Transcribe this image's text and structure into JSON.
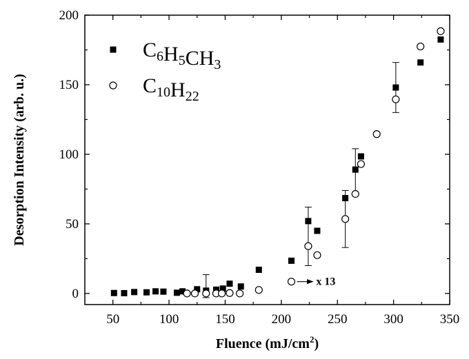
{
  "chart_data": {
    "type": "scatter",
    "xlabel": "Fluence (mJ/cm",
    "xlabel_sup": "2",
    "xlabel_end": ")",
    "ylabel": "Desorption Intensity (arb. u.)",
    "xlim": [
      25,
      350
    ],
    "ylim": [
      -8,
      200
    ],
    "xticks": [
      "50",
      "100",
      "150",
      "200",
      "250",
      "300",
      "350"
    ],
    "yticks": [
      "0",
      "50",
      "100",
      "150",
      "200"
    ],
    "xtick_values": [
      50,
      100,
      150,
      200,
      250,
      300,
      350
    ],
    "ytick_values": [
      0,
      50,
      100,
      150,
      200
    ],
    "series": [
      {
        "legend_parts": [
          {
            "t": "C",
            "sub": false
          },
          {
            "t": "6",
            "sub": true
          },
          {
            "t": "H",
            "sub": false
          },
          {
            "t": "5",
            "sub": true
          },
          {
            "t": "CH",
            "sub": false
          },
          {
            "t": "3",
            "sub": true
          }
        ],
        "marker": "filled-square",
        "x": [
          51,
          60,
          69,
          80,
          88,
          95,
          107,
          112,
          125,
          133,
          142,
          148,
          154,
          164,
          180,
          209,
          224,
          232,
          257,
          266,
          271,
          302,
          324,
          342
        ],
        "y": [
          0.3,
          0.2,
          1.0,
          0.8,
          1.5,
          1.3,
          0.5,
          1.5,
          3.0,
          2.0,
          2.7,
          3.5,
          7.0,
          5.0,
          17.0,
          23.5,
          52.0,
          45.0,
          68.5,
          89.0,
          98.5,
          148.0,
          166.0,
          182.5
        ]
      },
      {
        "legend_parts": [
          {
            "t": "C",
            "sub": false
          },
          {
            "t": "10",
            "sub": true
          },
          {
            "t": "H",
            "sub": false
          },
          {
            "t": "22",
            "sub": true
          }
        ],
        "marker": "open-circle",
        "x": [
          116,
          123,
          133,
          142,
          147,
          154,
          163,
          180,
          209,
          224,
          232,
          257,
          266,
          271,
          285,
          302,
          324,
          342
        ],
        "y": [
          0.0,
          0.0,
          0.0,
          0.0,
          0.0,
          0.3,
          0.0,
          2.5,
          8.5,
          34.0,
          27.5,
          53.5,
          71.5,
          93.0,
          114.5,
          139.5,
          177.5,
          188.5
        ]
      }
    ],
    "error_bars": [
      {
        "x": 133,
        "low": -3,
        "high": 13.5
      },
      {
        "x": 224,
        "low": 20,
        "high": 62
      },
      {
        "x": 257,
        "low": 33,
        "high": 74
      },
      {
        "x": 266,
        "low": 71,
        "high": 104
      },
      {
        "x": 302,
        "low": 130,
        "high": 166
      }
    ],
    "annotation": {
      "text": "x 13",
      "x_start": 214,
      "x_end": 228,
      "y": 8.5
    },
    "grid": false,
    "legend_position": "top-left"
  }
}
